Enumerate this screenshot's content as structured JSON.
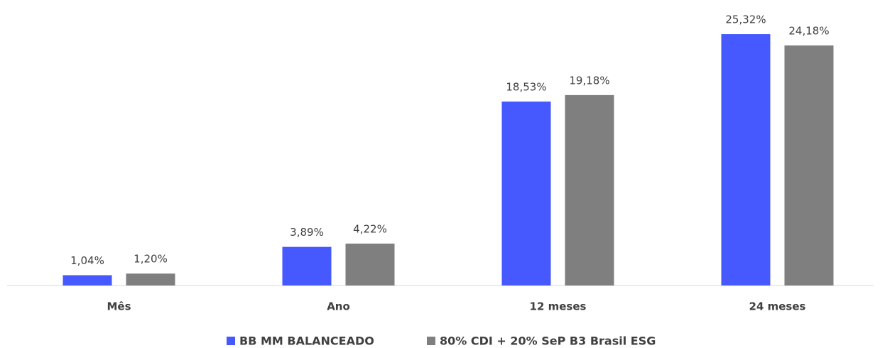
{
  "chart_data": {
    "type": "bar",
    "categories": [
      "Mês",
      "Ano",
      "12 meses",
      "24 meses"
    ],
    "series": [
      {
        "name": "BB MM BALANCEADO",
        "color": "#4559ff",
        "values": [
          1.04,
          3.89,
          18.53,
          25.32
        ],
        "value_labels": [
          "1,04%",
          "3,89%",
          "18,53%",
          "25,32%"
        ]
      },
      {
        "name": "80% CDI + 20% SeP B3 Brasil ESG",
        "color": "#7f7f7f",
        "values": [
          1.2,
          4.22,
          19.18,
          24.18
        ],
        "value_labels": [
          "1,20%",
          "4,22%",
          "19,18%",
          "24,18%"
        ]
      }
    ],
    "ylim": [
      0,
      28
    ]
  }
}
